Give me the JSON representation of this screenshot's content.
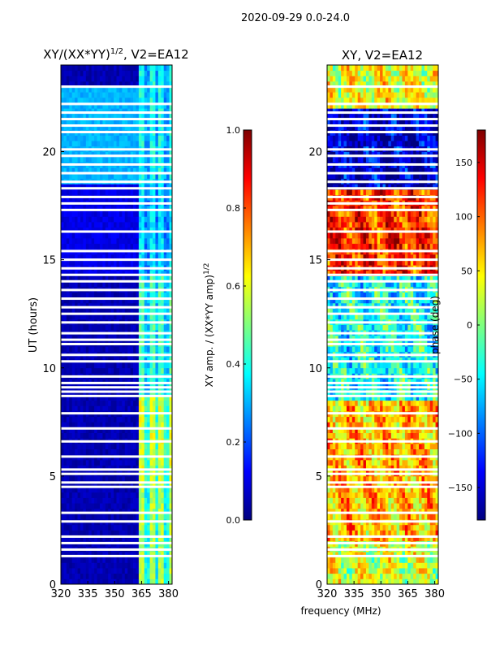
{
  "figure": {
    "suptitle": "2020-09-29 0.0-24.0",
    "xlabel": "frequency (MHz)"
  },
  "colors": {
    "jet": [
      "#00007f",
      "#0000ff",
      "#007fff",
      "#00ffff",
      "#7fff7f",
      "#ffff00",
      "#ff7f00",
      "#ff0000",
      "#7f0000"
    ]
  },
  "chart_data": [
    {
      "type": "heatmap",
      "title": "XY/(XX*YY)^{1/2}, V2=EA12",
      "title_main": "XY/(XX*YY)",
      "title_sup": "1/2",
      "title_tail": ", V2=EA12",
      "xlabel": "frequency (MHz)",
      "ylabel": "UT (hours)",
      "xlim": [
        320,
        382
      ],
      "ylim": [
        0,
        24
      ],
      "xticks": [
        320,
        335,
        350,
        365,
        380
      ],
      "yticks": [
        0,
        5,
        10,
        15,
        20
      ],
      "colorbar": {
        "label": "XY amp. / (XX*YY amp)^{1/2}",
        "label_main": "XY amp. / (XX*YY amp)",
        "label_sup": "1/2",
        "range": [
          0,
          1
        ],
        "ticks": [
          "0.0",
          "0.2",
          "0.4",
          "0.6",
          "0.8",
          "1.0"
        ],
        "tick_values": [
          0,
          0.2,
          0.4,
          0.6,
          0.8,
          1.0
        ]
      },
      "bands": [
        {
          "ut_start": 0.0,
          "ut_end": 4.6,
          "low_freq_value": 0.05,
          "high_freq_value": 0.55
        },
        {
          "ut_start": 4.6,
          "ut_end": 8.7,
          "low_freq_value": 0.05,
          "high_freq_value": 0.6
        },
        {
          "ut_start": 8.7,
          "ut_end": 14.2,
          "low_freq_value": 0.05,
          "high_freq_value": 0.45
        },
        {
          "ut_start": 14.2,
          "ut_end": 18.5,
          "low_freq_value": 0.1,
          "high_freq_value": 0.35
        },
        {
          "ut_start": 18.5,
          "ut_end": 23.0,
          "low_freq_value": 0.3,
          "high_freq_value": 0.4
        },
        {
          "ut_start": 23.0,
          "ut_end": 24.0,
          "low_freq_value": 0.05,
          "high_freq_value": 0.4
        }
      ]
    },
    {
      "type": "heatmap",
      "title": "XY, V2=EA12",
      "xlabel": "frequency (MHz)",
      "ylabel": "",
      "xlim": [
        320,
        382
      ],
      "ylim": [
        0,
        24
      ],
      "xticks": [
        320,
        335,
        350,
        365,
        380
      ],
      "yticks": [
        0,
        5,
        10,
        15,
        20
      ],
      "colorbar": {
        "label": "phase (deg)",
        "range": [
          -180,
          180
        ],
        "ticks": [
          "150",
          "100",
          "50",
          "0",
          "−50",
          "−100",
          "−150"
        ],
        "tick_values": [
          150,
          100,
          50,
          0,
          -50,
          -100,
          -150
        ]
      },
      "bands": [
        {
          "ut_start": 0.0,
          "ut_end": 2.0,
          "phase_deg": 30
        },
        {
          "ut_start": 2.0,
          "ut_end": 8.5,
          "phase_deg": 70
        },
        {
          "ut_start": 8.5,
          "ut_end": 14.3,
          "phase_deg": -40
        },
        {
          "ut_start": 14.3,
          "ut_end": 18.3,
          "phase_deg": 120
        },
        {
          "ut_start": 18.3,
          "ut_end": 22.0,
          "phase_deg": -150
        },
        {
          "ut_start": 22.0,
          "ut_end": 24.0,
          "phase_deg": 40
        }
      ]
    }
  ],
  "gaps_ut": [
    1.3,
    1.6,
    1.9,
    2.2,
    2.9,
    3.3,
    4.5,
    4.7,
    5.1,
    5.3,
    5.9,
    6.6,
    7.2,
    7.9,
    8.7,
    8.9,
    9.1,
    9.3,
    9.6,
    10.3,
    10.6,
    11.1,
    11.3,
    11.6,
    12.1,
    12.5,
    12.8,
    13.2,
    13.6,
    14.0,
    14.3,
    14.6,
    15.0,
    15.4,
    16.3,
    17.3,
    17.6,
    17.9,
    18.3,
    18.6,
    19.0,
    19.4,
    19.8,
    20.1,
    20.9,
    21.2,
    21.5,
    21.8,
    22.2,
    23.0
  ]
}
